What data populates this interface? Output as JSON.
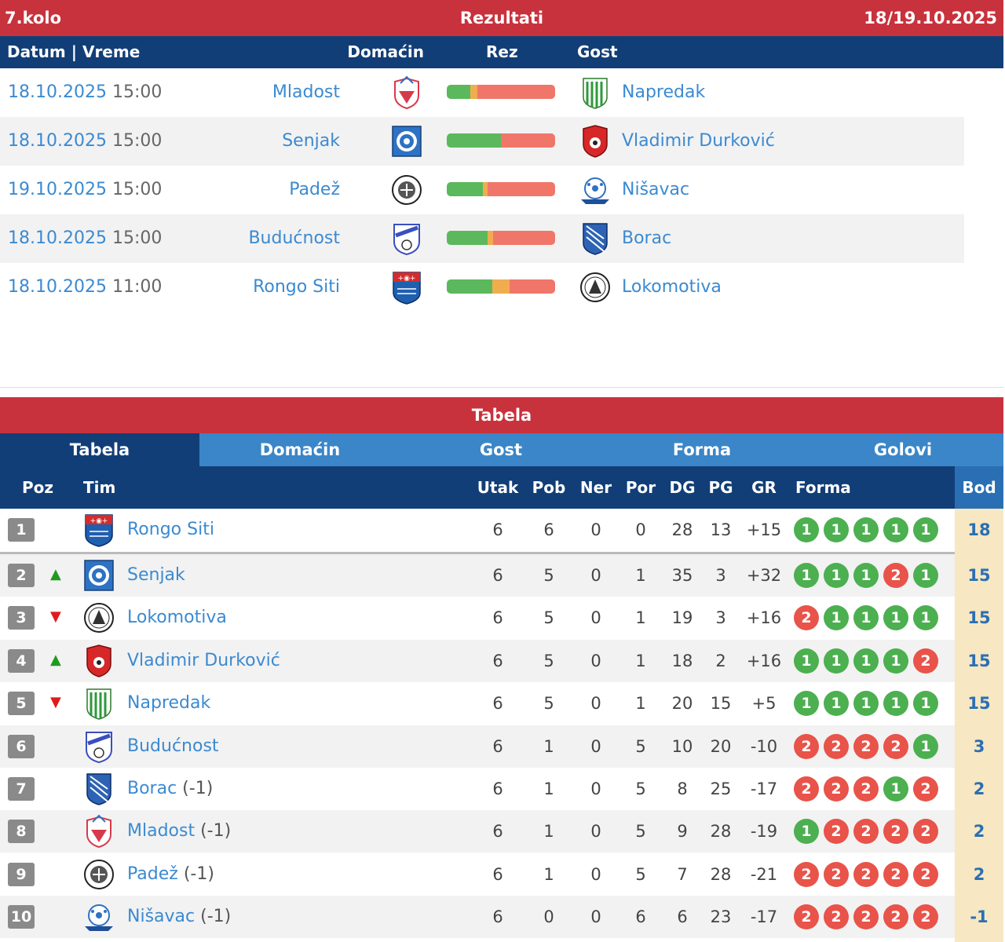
{
  "round_bar": {
    "round": "7.kolo",
    "title": "Rezultati",
    "dates": "18/19.10.2025"
  },
  "results_header": {
    "datetime": "Datum | Vreme",
    "home": "Domaćin",
    "score": "Rez",
    "away": "Gost"
  },
  "matches": [
    {
      "date": "18.10.2025",
      "time": "15:00",
      "home": "Mladost",
      "home_crest": "mladost-crest-icon",
      "away": "Napredak",
      "away_crest": "napredak-crest-icon",
      "bar": [
        0.22,
        0.06,
        0.72
      ]
    },
    {
      "date": "18.10.2025",
      "time": "15:00",
      "home": "Senjak",
      "home_crest": "senjak-crest-icon",
      "away": "Vladimir Durković",
      "away_crest": "vladimir-durkovic-crest-icon",
      "bar": [
        0.5,
        0.0,
        0.5
      ]
    },
    {
      "date": "19.10.2025",
      "time": "15:00",
      "home": "Padež",
      "home_crest": "padez-crest-icon",
      "away": "Nišavac",
      "away_crest": "nisavac-crest-icon",
      "bar": [
        0.33,
        0.05,
        0.62
      ]
    },
    {
      "date": "18.10.2025",
      "time": "15:00",
      "home": "Budućnost",
      "home_crest": "buducnost-crest-icon",
      "away": "Borac",
      "away_crest": "borac-crest-icon",
      "bar": [
        0.38,
        0.05,
        0.57
      ]
    },
    {
      "date": "18.10.2025",
      "time": "11:00",
      "home": "Rongo Siti",
      "home_crest": "rongo-siti-crest-icon",
      "away": "Lokomotiva",
      "away_crest": "lokomotiva-crest-icon",
      "bar": [
        0.42,
        0.16,
        0.42
      ]
    }
  ],
  "table_bar": {
    "title": "Tabela"
  },
  "tabs": [
    "Tabela",
    "Domaćin",
    "Gost",
    "Forma",
    "Golovi"
  ],
  "table_header": {
    "pos": "Poz",
    "team": "Tim",
    "played": "Utak",
    "won": "Pob",
    "draw": "Ner",
    "lost": "Por",
    "gf": "DG",
    "ga": "PG",
    "gd": "GR",
    "form": "Forma",
    "points": "Bod"
  },
  "standings": [
    {
      "pos": "1",
      "move": "",
      "team": "Rongo Siti",
      "penalty": "",
      "crest": "rongo-siti-crest-icon",
      "played": "6",
      "won": "6",
      "draw": "0",
      "lost": "0",
      "gf": "28",
      "ga": "13",
      "gd": "+15",
      "form": [
        "1",
        "1",
        "1",
        "1",
        "1"
      ],
      "points": "18"
    },
    {
      "pos": "2",
      "move": "up",
      "team": "Senjak",
      "penalty": "",
      "crest": "senjak-crest-icon",
      "played": "6",
      "won": "5",
      "draw": "0",
      "lost": "1",
      "gf": "35",
      "ga": "3",
      "gd": "+32",
      "form": [
        "1",
        "1",
        "1",
        "2",
        "1"
      ],
      "points": "15"
    },
    {
      "pos": "3",
      "move": "down",
      "team": "Lokomotiva",
      "penalty": "",
      "crest": "lokomotiva-crest-icon",
      "played": "6",
      "won": "5",
      "draw": "0",
      "lost": "1",
      "gf": "19",
      "ga": "3",
      "gd": "+16",
      "form": [
        "2",
        "1",
        "1",
        "1",
        "1"
      ],
      "points": "15"
    },
    {
      "pos": "4",
      "move": "up",
      "team": "Vladimir Durković",
      "penalty": "",
      "crest": "vladimir-durkovic-crest-icon",
      "played": "6",
      "won": "5",
      "draw": "0",
      "lost": "1",
      "gf": "18",
      "ga": "2",
      "gd": "+16",
      "form": [
        "1",
        "1",
        "1",
        "1",
        "2"
      ],
      "points": "15"
    },
    {
      "pos": "5",
      "move": "down",
      "team": "Napredak",
      "penalty": "",
      "crest": "napredak-crest-icon",
      "played": "6",
      "won": "5",
      "draw": "0",
      "lost": "1",
      "gf": "20",
      "ga": "15",
      "gd": "+5",
      "form": [
        "1",
        "1",
        "1",
        "1",
        "1"
      ],
      "points": "15"
    },
    {
      "pos": "6",
      "move": "",
      "team": "Budućnost",
      "penalty": "",
      "crest": "buducnost-crest-icon",
      "played": "6",
      "won": "1",
      "draw": "0",
      "lost": "5",
      "gf": "10",
      "ga": "20",
      "gd": "-10",
      "form": [
        "2",
        "2",
        "2",
        "2",
        "1"
      ],
      "points": "3"
    },
    {
      "pos": "7",
      "move": "",
      "team": "Borac",
      "penalty": "(-1)",
      "crest": "borac-crest-icon",
      "played": "6",
      "won": "1",
      "draw": "0",
      "lost": "5",
      "gf": "8",
      "ga": "25",
      "gd": "-17",
      "form": [
        "2",
        "2",
        "2",
        "1",
        "2"
      ],
      "points": "2"
    },
    {
      "pos": "8",
      "move": "",
      "team": "Mladost",
      "penalty": "(-1)",
      "crest": "mladost-crest-icon",
      "played": "6",
      "won": "1",
      "draw": "0",
      "lost": "5",
      "gf": "9",
      "ga": "28",
      "gd": "-19",
      "form": [
        "1",
        "2",
        "2",
        "2",
        "2"
      ],
      "points": "2"
    },
    {
      "pos": "9",
      "move": "",
      "team": "Padež",
      "penalty": "(-1)",
      "crest": "padez-crest-icon",
      "played": "6",
      "won": "1",
      "draw": "0",
      "lost": "5",
      "gf": "7",
      "ga": "28",
      "gd": "-21",
      "form": [
        "2",
        "2",
        "2",
        "2",
        "2"
      ],
      "points": "2"
    },
    {
      "pos": "10",
      "move": "",
      "team": "Nišavac",
      "penalty": "(-1)",
      "crest": "nisavac-crest-icon",
      "played": "6",
      "won": "0",
      "draw": "0",
      "lost": "6",
      "gf": "6",
      "ga": "23",
      "gd": "-17",
      "form": [
        "2",
        "2",
        "2",
        "2",
        "2"
      ],
      "points": "-1"
    }
  ],
  "colors": {
    "red_bar": "#c8323c",
    "dark_blue": "#123e77",
    "tab_blue": "#3a86c8",
    "link": "#3b8ad1",
    "win": "#4caf50",
    "loss": "#e8534a",
    "points_bg": "#f7e7c2"
  }
}
